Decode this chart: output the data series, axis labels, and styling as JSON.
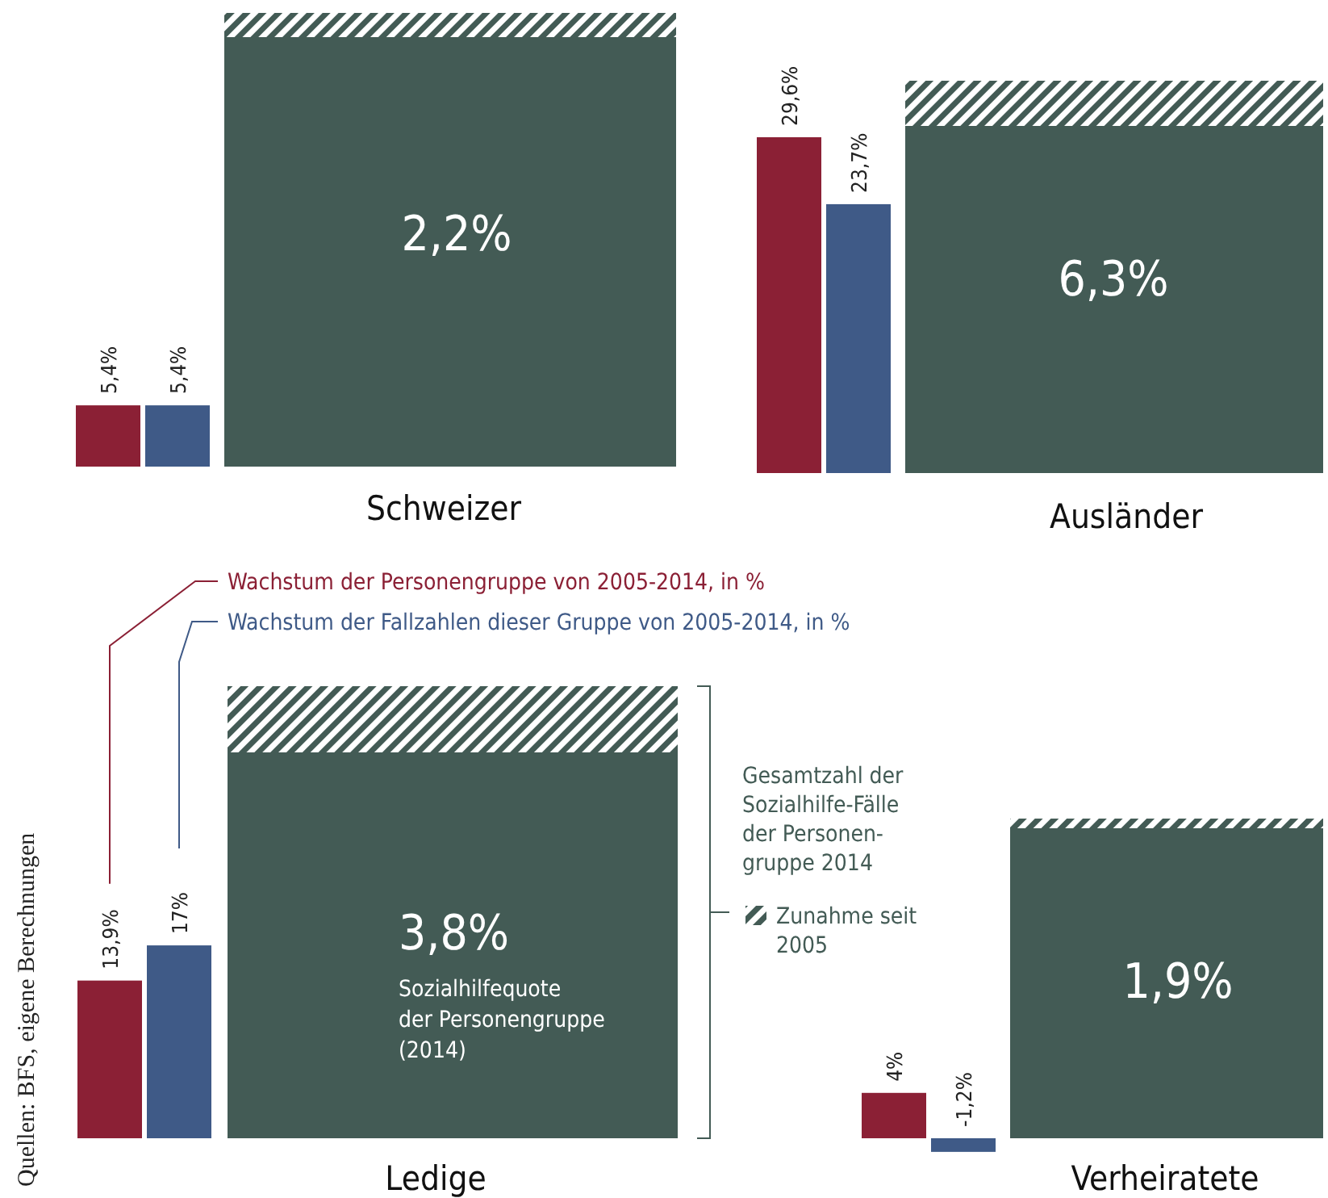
{
  "chart_data": [
    {
      "type": "bar",
      "xlabel": "Schweizer",
      "categories": [
        null
      ],
      "series": [
        {
          "color": "#8b2035",
          "values": [
            5.4
          ],
          "value_labels": [
            "5,4%"
          ]
        },
        {
          "color": "#3f5a87",
          "values": [
            5.4
          ],
          "value_labels": [
            "5,4%"
          ]
        }
      ],
      "annotations": [
        "2,2%"
      ]
    },
    {
      "type": "bar",
      "xlabel": "Ausländer",
      "categories": [
        null
      ],
      "series": [
        {
          "color": "#8b2035",
          "values": [
            29.6
          ],
          "value_labels": [
            "29,6%"
          ]
        },
        {
          "color": "#3f5a87",
          "values": [
            23.7
          ],
          "value_labels": [
            "23,7%"
          ]
        }
      ],
      "annotations": [
        "6,3%"
      ]
    },
    {
      "type": "bar",
      "xlabel": "Ledige",
      "categories": [
        null
      ],
      "legend": "top",
      "series": [
        {
          "name": "Wachstum der Personengruppe von 2005-2014, in %",
          "color": "#8b2035",
          "values": [
            13.9
          ],
          "value_labels": [
            "13,9%"
          ]
        },
        {
          "name": "Wachstum der Fallzahlen dieser Gruppe von 2005-2014, in %",
          "color": "#3f5a87",
          "values": [
            17
          ],
          "value_labels": [
            "17%"
          ]
        }
      ],
      "annotations": [
        "3,8%",
        "Sozialhilfequote\nder Personengruppe\n(2014)",
        "Gesamtzahl der\nSozialhilfe-Fälle\nder Personen-\ngruppe 2014",
        "Zunahme seit\n2005",
        "Quellen: BFS, eigene Berechnungen"
      ]
    },
    {
      "type": "bar",
      "xlabel": "Verheiratete",
      "categories": [
        null
      ],
      "series": [
        {
          "color": "#8b2035",
          "values": [
            4
          ],
          "value_labels": [
            "4%"
          ]
        },
        {
          "color": "#3f5a87",
          "values": [
            -1.2
          ],
          "value_labels": [
            "-1,2%"
          ]
        }
      ],
      "annotations": [
        "1,9%"
      ]
    }
  ]
}
